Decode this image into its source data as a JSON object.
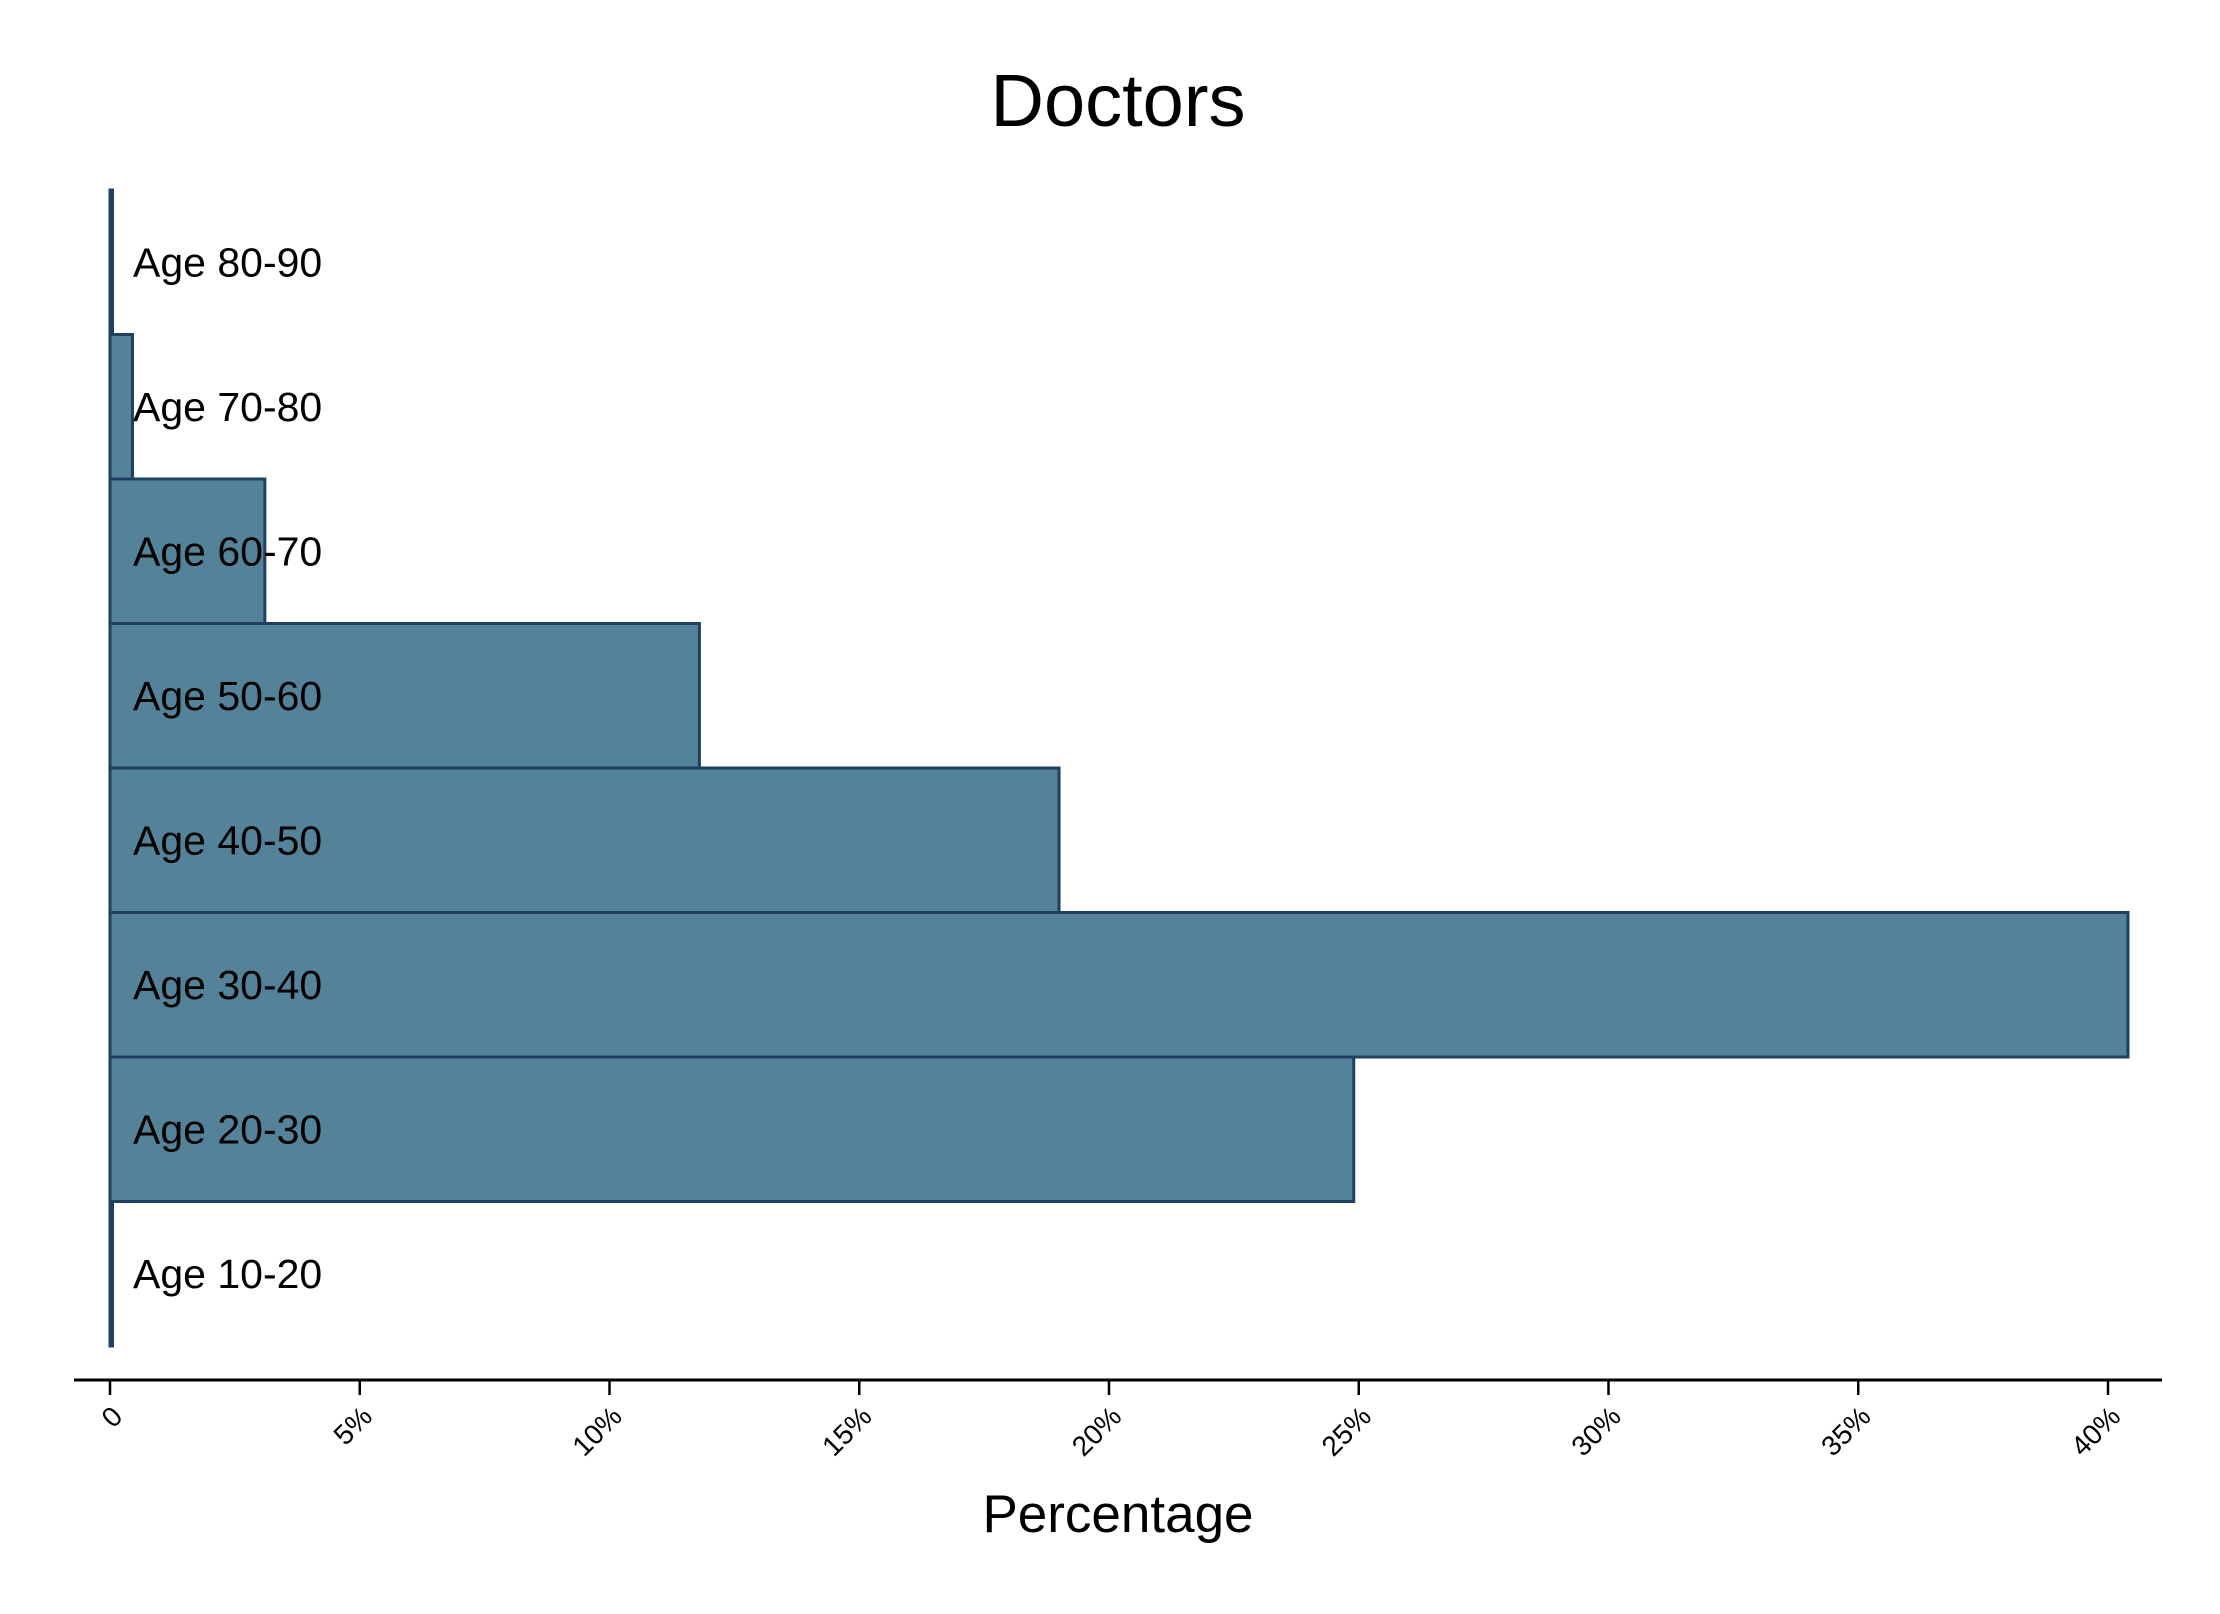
{
  "chart_data": {
    "type": "bar",
    "orientation": "horizontal",
    "title": "Doctors",
    "xlabel": "Percentage",
    "ylabel": "",
    "categories": [
      "Age 10-20",
      "Age 20-30",
      "Age 30-40",
      "Age 40-50",
      "Age 50-60",
      "Age 60-70",
      "Age 70-80",
      "Age 80-90"
    ],
    "values": [
      0.05,
      24.9,
      40.4,
      19.0,
      11.8,
      3.1,
      0.45,
      0.03
    ],
    "xlim": [
      0,
      40
    ],
    "x_ticks": [
      {
        "value": 0,
        "label": "0"
      },
      {
        "value": 5,
        "label": "5%"
      },
      {
        "value": 10,
        "label": "10%"
      },
      {
        "value": 15,
        "label": "15%"
      },
      {
        "value": 20,
        "label": "20%"
      },
      {
        "value": 25,
        "label": "25%"
      },
      {
        "value": 30,
        "label": "30%"
      },
      {
        "value": 35,
        "label": "35%"
      },
      {
        "value": 40,
        "label": "40%"
      }
    ],
    "grid": false,
    "legend": "none",
    "colors": {
      "bar_fill": "#538299",
      "bar_stroke": "#1f3f63",
      "axis": "#000000",
      "background": "#ffffff"
    }
  }
}
